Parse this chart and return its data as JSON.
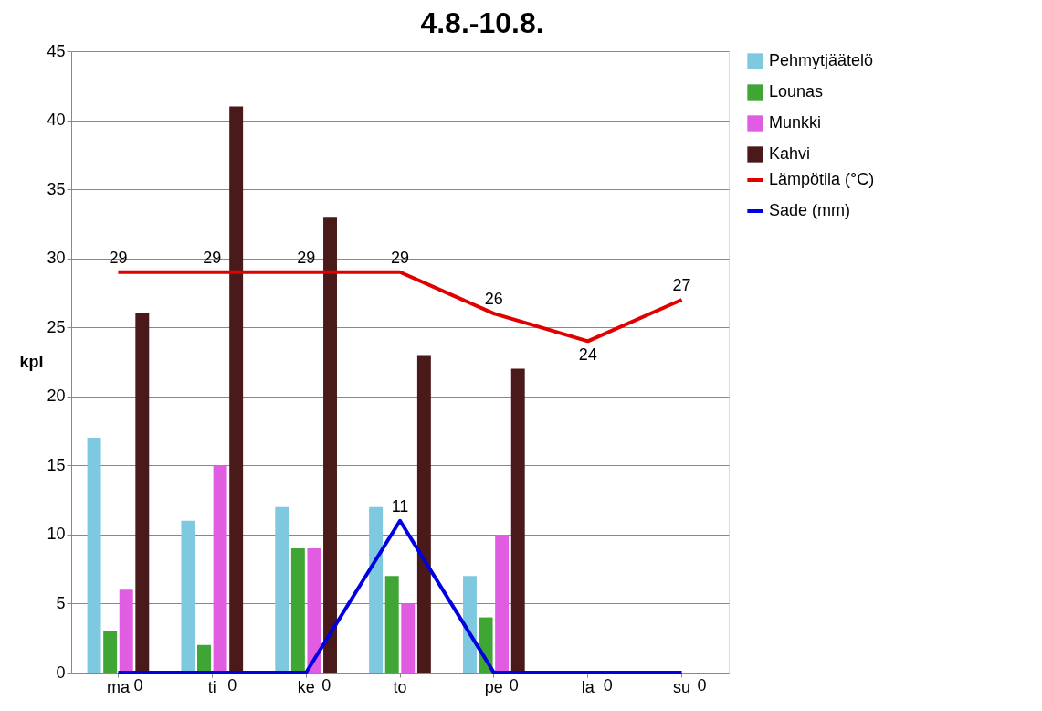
{
  "chart_data": {
    "type": "bar",
    "title": "4.8.-10.8.",
    "ylabel": "kpl",
    "categories": [
      "ma",
      "ti",
      "ke",
      "to",
      "pe",
      "la",
      "su"
    ],
    "series": [
      {
        "name": "Pehmytjäätelö",
        "color": "#7ec8e0",
        "values": [
          17,
          11,
          12,
          12,
          7,
          null,
          null
        ]
      },
      {
        "name": "Lounas",
        "color": "#3fa535",
        "values": [
          3,
          2,
          9,
          7,
          4,
          null,
          null
        ]
      },
      {
        "name": "Munkki",
        "color": "#e05ce0",
        "values": [
          6,
          15,
          9,
          5,
          10,
          null,
          null
        ]
      },
      {
        "name": "Kahvi",
        "color": "#4a1a1a",
        "values": [
          26,
          41,
          33,
          23,
          22,
          null,
          null
        ]
      },
      {
        "name": "Lämpötila (°C)",
        "type": "line",
        "color": "#e00000",
        "values": [
          29,
          29,
          29,
          29,
          26,
          24,
          27
        ],
        "value_labels": [
          "29",
          "29",
          "29",
          "29",
          "26",
          "24",
          "27"
        ]
      },
      {
        "name": "Sade (mm)",
        "type": "line",
        "color": "#0000e0",
        "values": [
          0,
          0,
          0,
          11,
          0,
          0,
          0
        ],
        "value_labels": [
          "0",
          "0",
          "0",
          "11",
          "0",
          "0",
          "0"
        ]
      }
    ],
    "ylim": [
      0,
      45
    ],
    "yticks": [
      0,
      5,
      10,
      15,
      20,
      25,
      30,
      35,
      40,
      45
    ],
    "grid": "y",
    "legend": "right"
  }
}
